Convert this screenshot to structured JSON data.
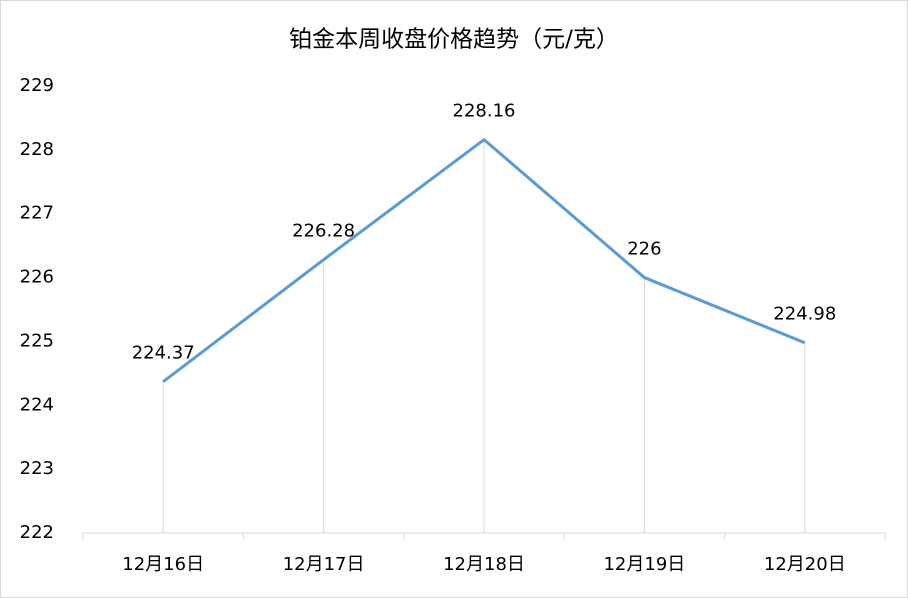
{
  "chart_data": {
    "type": "line",
    "title": "铂金本周收盘价格趋势（元/克）",
    "categories": [
      "12月16日",
      "12月17日",
      "12月18日",
      "12月19日",
      "12月20日"
    ],
    "series": [
      {
        "name": "铂金",
        "color": "#5b9bd5",
        "values": [
          224.37,
          226.28,
          228.16,
          226,
          224.98
        ]
      }
    ],
    "ylim": [
      222,
      229
    ],
    "yticks": [
      222,
      223,
      224,
      225,
      226,
      227,
      228,
      229
    ],
    "grid": false
  }
}
